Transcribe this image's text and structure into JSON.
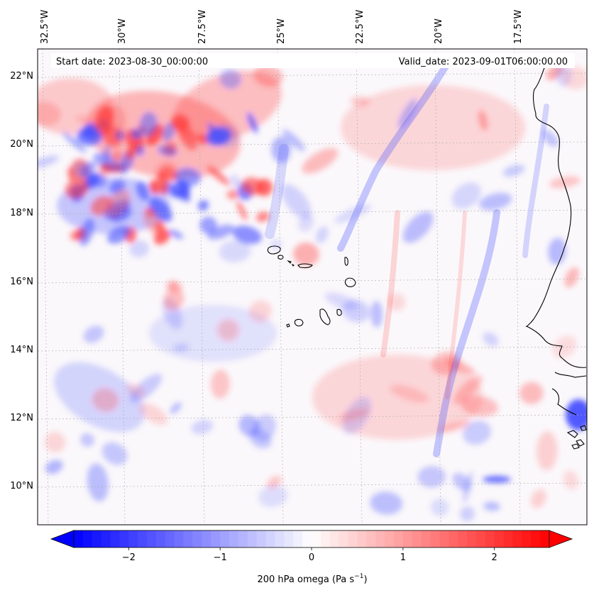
{
  "map": {
    "start_date": "Start date: 2023-08-30_00:00:00",
    "valid_date": "Valid_date: 2023-09-01T06:00:00.00",
    "lon_labels": [
      "32.5°W",
      "30°W",
      "27.5°W",
      "25°W",
      "22.5°W",
      "20°W",
      "17.5°W"
    ],
    "lat_labels": [
      "22°N",
      "20°N",
      "18°N",
      "16°N",
      "14°N",
      "12°N",
      "10°N"
    ],
    "gridlines": true,
    "colormap": "bwr",
    "colors": {
      "negative": "#0000ff",
      "zero": "#ffffff",
      "positive": "#ff0000",
      "coastline": "#000000",
      "grid": "#999999"
    }
  },
  "colorbar": {
    "ticks": [
      "−2",
      "−1",
      "0",
      "1",
      "2"
    ],
    "tick_values": [
      -2,
      -1,
      0,
      1,
      2
    ],
    "range": [
      -2.6,
      2.6
    ],
    "extend": "both",
    "label_main": "200 hPa omega (Pa s",
    "label_sup": "−1",
    "label_close": ")"
  }
}
